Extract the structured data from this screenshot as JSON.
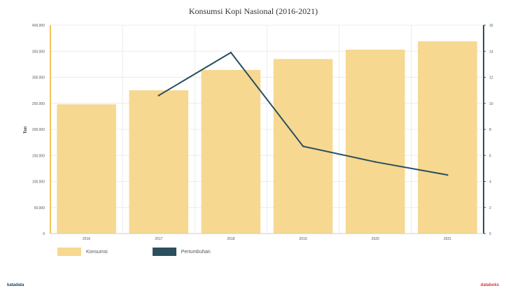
{
  "chart_data": {
    "type": "bar",
    "title": "Konsumsi Kopi Nasional (2016-2021)",
    "ylabel": "Ton",
    "categories": [
      "2016",
      "2017",
      "2018",
      "2019",
      "2020",
      "2021"
    ],
    "ylim": [
      0,
      400000
    ],
    "y2lim": [
      0,
      16
    ],
    "yticks": [
      "0",
      "50.000",
      "100.000",
      "150.000",
      "200.000",
      "250.000",
      "300.000",
      "350.000",
      "400.000"
    ],
    "y2ticks": [
      "0",
      "2",
      "4",
      "6",
      "8",
      "10",
      "12",
      "14",
      "16"
    ],
    "series": [
      {
        "name": "Konsumsi",
        "type": "bar",
        "axis": "left",
        "color": "#f6d891",
        "values": [
          248000,
          275000,
          314000,
          335000,
          353000,
          369000
        ]
      },
      {
        "name": "Pertumbuhan",
        "type": "line",
        "axis": "right",
        "color": "#2b4f5e",
        "values": [
          null,
          10.6,
          13.9,
          6.7,
          5.5,
          4.5
        ]
      }
    ],
    "grid": true,
    "legend": "bottom-left"
  },
  "footer": {
    "left": "katadata",
    "right": "databoks"
  }
}
